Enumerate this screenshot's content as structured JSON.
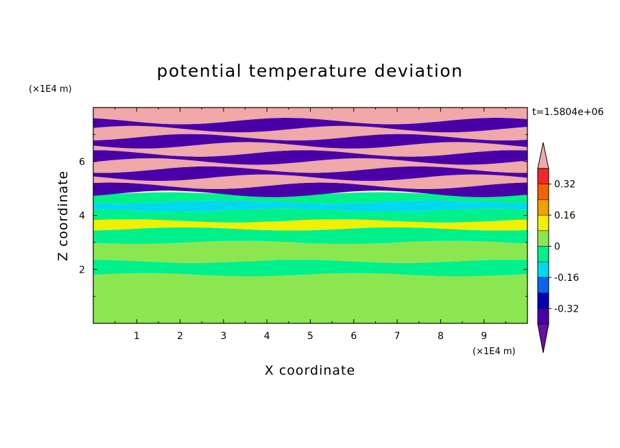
{
  "chart_data": {
    "type": "heatmap",
    "title": "potential temperature deviation",
    "time_label": "t=1.5804e+06",
    "xlabel": "X coordinate",
    "ylabel": "Z coordinate",
    "x_unit": "(×1E4 m)",
    "y_unit": "(×1E4 m)",
    "xlim": [
      0,
      10
    ],
    "ylim": [
      0,
      8
    ],
    "x_ticks": [
      "1",
      "2",
      "3",
      "4",
      "5",
      "6",
      "7",
      "8",
      "9"
    ],
    "y_ticks": [
      "2",
      "4",
      "6"
    ],
    "colorbar": {
      "levels": [
        -0.48,
        -0.4,
        -0.32,
        -0.24,
        -0.16,
        -0.08,
        0,
        0.08,
        0.16,
        0.24,
        0.32,
        0.4
      ],
      "colors": [
        "#6a0fa8",
        "#4a00a8",
        "#0000b4",
        "#0a64f0",
        "#00d8f0",
        "#00f08c",
        "#8ce650",
        "#f0f000",
        "#f0a000",
        "#f06400",
        "#f02828",
        "#f0a8a8"
      ],
      "labels": [
        "0.32",
        "0.16",
        "0",
        "-0.16",
        "-0.32"
      ],
      "label_values": [
        0.32,
        0.16,
        0,
        -0.16,
        -0.32
      ],
      "extend": "both"
    },
    "bands": [
      {
        "z": [
          0.0,
          1.8
        ],
        "class": 6
      },
      {
        "z": [
          1.8,
          2.3
        ],
        "class": 5
      },
      {
        "z": [
          2.3,
          3.0
        ],
        "class": 6
      },
      {
        "z": [
          3.0,
          3.5
        ],
        "class": 5
      },
      {
        "z": [
          3.5,
          3.8
        ],
        "class": 7
      },
      {
        "z": [
          3.8,
          4.2
        ],
        "class": 5
      },
      {
        "z": [
          4.2,
          4.5
        ],
        "class": 4
      },
      {
        "z": [
          4.5,
          4.8
        ],
        "class": 5
      },
      {
        "z": [
          4.8,
          5.1
        ],
        "class": 1
      },
      {
        "z": [
          5.1,
          5.4
        ],
        "class": 11
      },
      {
        "z": [
          5.4,
          5.7
        ],
        "class": 1
      },
      {
        "z": [
          5.7,
          6.0
        ],
        "class": 11
      },
      {
        "z": [
          6.0,
          6.3
        ],
        "class": 1
      },
      {
        "z": [
          6.3,
          6.6
        ],
        "class": 11
      },
      {
        "z": [
          6.6,
          6.9
        ],
        "class": 1
      },
      {
        "z": [
          6.9,
          7.2
        ],
        "class": 11
      },
      {
        "z": [
          7.2,
          7.5
        ],
        "class": 1
      },
      {
        "z": [
          7.5,
          8.0
        ],
        "class": 11
      }
    ]
  }
}
